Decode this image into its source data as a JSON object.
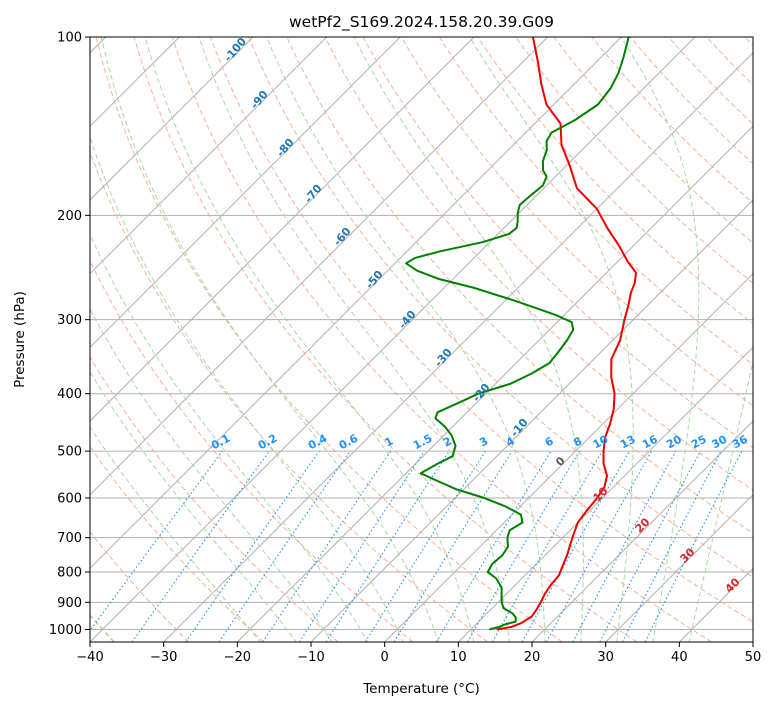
{
  "chart_data": {
    "type": "line",
    "title": "wetPf2_S169.2024.158.20.39.G09",
    "xlabel": "Temperature (°C)",
    "ylabel": "Pressure (hPa)",
    "xlim": [
      -40,
      50
    ],
    "ylim": [
      1050,
      100
    ],
    "y_scale": "log",
    "x_ticks": [
      "−40",
      "−30",
      "−20",
      "−10",
      "0",
      "10",
      "20",
      "30",
      "40",
      "50"
    ],
    "y_ticks": [
      "100",
      "200",
      "300",
      "400",
      "500",
      "600",
      "700",
      "800",
      "900",
      "1000"
    ],
    "grid": true,
    "colors": {
      "temperature": "#ee0000",
      "dewpoint": "#008000",
      "isotherm": "#b0b0b0",
      "dry_adiabat": "#f4a582",
      "moist_adiabat": "#a6d9a6",
      "mixing_ratio": "#1e90ff",
      "adiabat_label": "#1f77b4",
      "wet_bulb_label": "#d62728"
    },
    "series": [
      {
        "key": "temperature",
        "points": [
          [
            13.5,
            1000
          ],
          [
            15.2,
            990
          ],
          [
            16.0,
            975
          ],
          [
            16.5,
            950
          ],
          [
            16.2,
            925
          ],
          [
            15.8,
            900
          ],
          [
            15.2,
            870
          ],
          [
            14.8,
            840
          ],
          [
            14.6,
            810
          ],
          [
            13.8,
            780
          ],
          [
            13.0,
            750
          ],
          [
            12.0,
            720
          ],
          [
            11.0,
            690
          ],
          [
            10.0,
            660
          ],
          [
            9.6,
            630
          ],
          [
            9.3,
            600
          ],
          [
            8.8,
            575
          ],
          [
            7.6,
            550
          ],
          [
            5.5,
            525
          ],
          [
            3.8,
            500
          ],
          [
            2.2,
            475
          ],
          [
            1.0,
            450
          ],
          [
            -0.5,
            425
          ],
          [
            -2.5,
            400
          ],
          [
            -5.2,
            375
          ],
          [
            -7.6,
            350
          ],
          [
            -9.0,
            325
          ],
          [
            -10.3,
            310
          ],
          [
            -11.2,
            300
          ],
          [
            -12.5,
            285
          ],
          [
            -14.0,
            270
          ],
          [
            -14.8,
            260
          ],
          [
            -16.0,
            250
          ],
          [
            -18.5,
            240
          ],
          [
            -22.0,
            225
          ],
          [
            -26.0,
            210
          ],
          [
            -30.0,
            195
          ],
          [
            -35.5,
            180
          ],
          [
            -39.5,
            165
          ],
          [
            -43.5,
            152
          ],
          [
            -46.5,
            140
          ],
          [
            -51.0,
            130
          ],
          [
            -54.5,
            120
          ],
          [
            -58.0,
            110
          ],
          [
            -62.0,
            100
          ]
        ]
      },
      {
        "key": "dewpoint",
        "points": [
          [
            12.5,
            1000
          ],
          [
            13.5,
            990
          ],
          [
            14.0,
            980
          ],
          [
            15.0,
            970
          ],
          [
            14.5,
            955
          ],
          [
            13.5,
            940
          ],
          [
            11.5,
            920
          ],
          [
            10.5,
            900
          ],
          [
            9.5,
            875
          ],
          [
            8.5,
            850
          ],
          [
            6.5,
            820
          ],
          [
            4.5,
            800
          ],
          [
            4.0,
            775
          ],
          [
            4.2,
            750
          ],
          [
            3.8,
            725
          ],
          [
            2.5,
            700
          ],
          [
            1.8,
            680
          ],
          [
            2.5,
            660
          ],
          [
            1.2,
            640
          ],
          [
            -2.0,
            620
          ],
          [
            -6.0,
            600
          ],
          [
            -11.0,
            580
          ],
          [
            -15.0,
            560
          ],
          [
            -18.0,
            545
          ],
          [
            -17.0,
            525
          ],
          [
            -16.0,
            510
          ],
          [
            -17.0,
            490
          ],
          [
            -19.0,
            470
          ],
          [
            -21.0,
            455
          ],
          [
            -23.5,
            440
          ],
          [
            -24.0,
            430
          ],
          [
            -22.5,
            415
          ],
          [
            -21.0,
            400
          ],
          [
            -18.0,
            385
          ],
          [
            -16.5,
            370
          ],
          [
            -15.5,
            355
          ],
          [
            -15.8,
            340
          ],
          [
            -16.2,
            325
          ],
          [
            -16.8,
            312
          ],
          [
            -18.0,
            303
          ],
          [
            -21.0,
            295
          ],
          [
            -28.0,
            280
          ],
          [
            -36.0,
            265
          ],
          [
            -42.0,
            256
          ],
          [
            -46.0,
            248
          ],
          [
            -48.5,
            241
          ],
          [
            -48.0,
            236
          ],
          [
            -45.5,
            230
          ],
          [
            -41.0,
            222
          ],
          [
            -38.5,
            215
          ],
          [
            -38.3,
            210
          ],
          [
            -39.0,
            205
          ],
          [
            -40.2,
            198
          ],
          [
            -41.0,
            192
          ],
          [
            -40.8,
            185
          ],
          [
            -40.5,
            178
          ],
          [
            -41.2,
            172
          ],
          [
            -42.5,
            168
          ],
          [
            -43.8,
            162
          ],
          [
            -44.8,
            155
          ],
          [
            -46.0,
            150
          ],
          [
            -46.5,
            145
          ],
          [
            -45.0,
            138
          ],
          [
            -44.0,
            130
          ],
          [
            -44.5,
            122
          ],
          [
            -45.5,
            115
          ],
          [
            -47.0,
            108
          ],
          [
            -49.0,
            100
          ]
        ]
      }
    ],
    "dry_adiabat_labels": [
      "-100",
      "-90",
      "-80",
      "-70",
      "-60",
      "-50",
      "-40",
      "-30",
      "-20",
      "-10"
    ],
    "mixing_ratio_labels": [
      "0.1",
      "0.2",
      "0.4",
      "0.6",
      "1",
      "1.5",
      "2",
      "3",
      "4",
      "6",
      "8",
      "10",
      "13",
      "16",
      "20",
      "25",
      "30",
      "36"
    ],
    "wet_bulb_labels": [
      "0",
      "10",
      "20",
      "30",
      "40"
    ]
  }
}
